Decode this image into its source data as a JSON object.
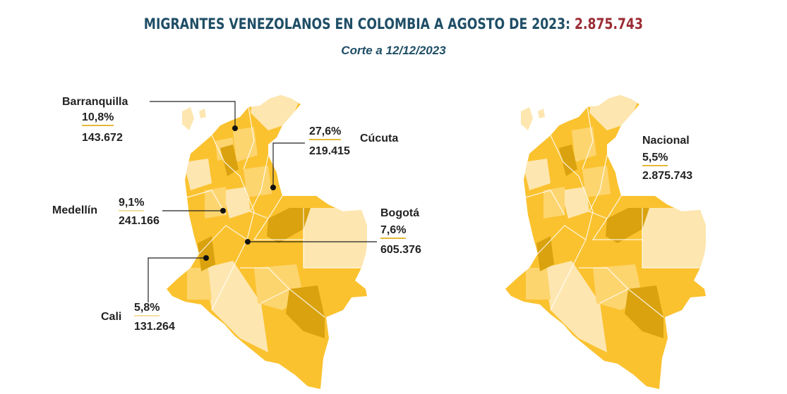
{
  "header": {
    "title": "MIGRANTES VENEZOLANOS EN COLOMBIA A AGOSTO DE 2023:",
    "total": "2.875.743",
    "subtitle": "Corte a 12/12/2023"
  },
  "colors": {
    "title": "#1f4e66",
    "total": "#9b2c34",
    "map_light": "#fde6b0",
    "map_mid": "#fdd56f",
    "map_strong": "#fbc22f",
    "map_dark": "#d9a20e",
    "underline": "#e3b938"
  },
  "cities": [
    {
      "name": "Barranquilla",
      "percent": "10,8%",
      "count": "143.672"
    },
    {
      "name": "Cúcuta",
      "percent": "27,6%",
      "count": "219.415"
    },
    {
      "name": "Medellín",
      "percent": "9,1%",
      "count": "241.166"
    },
    {
      "name": "Bogotá",
      "percent": "7,6%",
      "count": "605.376"
    },
    {
      "name": "Cali",
      "percent": "5,8%",
      "count": "131.264"
    }
  ],
  "national": {
    "name": "Nacional",
    "percent": "5,5%",
    "count": "2.875.743"
  }
}
